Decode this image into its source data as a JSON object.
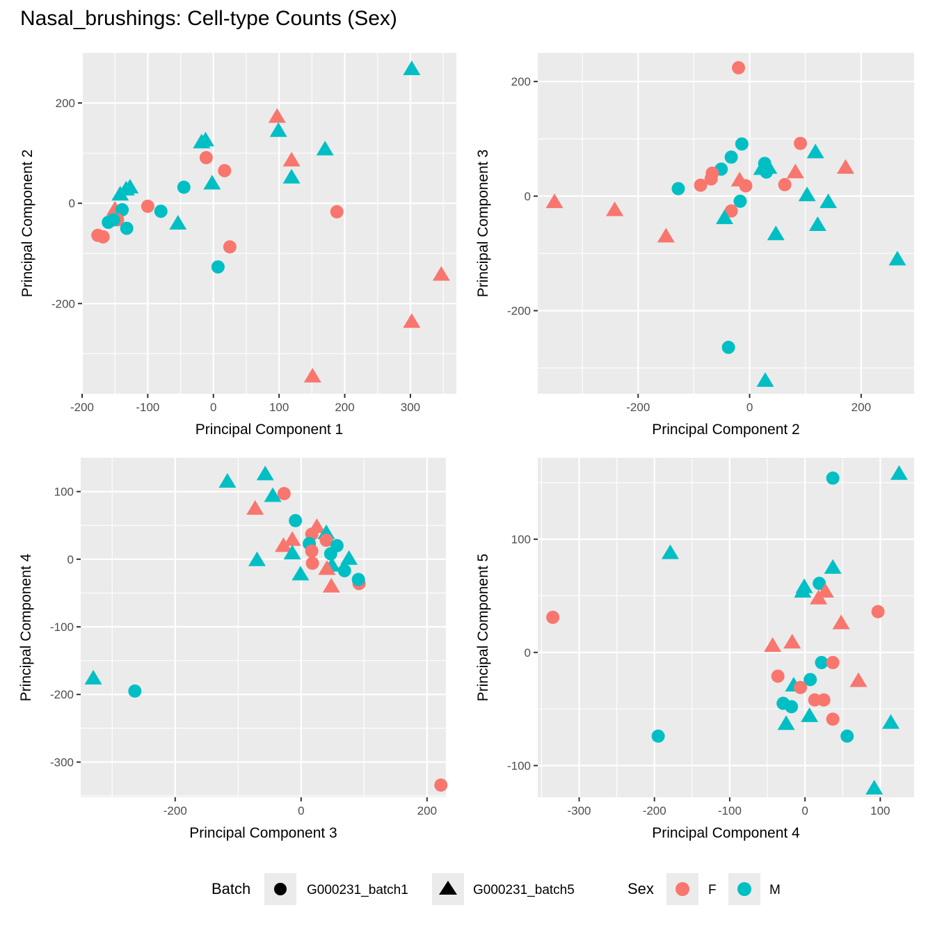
{
  "title": "Nasal_brushings: Cell-type Counts (Sex)",
  "colors": {
    "F": "#F8766D",
    "M": "#00BFC4",
    "panel_bg": "#EBEBEB",
    "grid": "#FFFFFF"
  },
  "legend": {
    "batch_title": "Batch",
    "batch_items": [
      {
        "label": "G000231_batch1",
        "shape": "circle"
      },
      {
        "label": "G000231_batch5",
        "shape": "triangle"
      }
    ],
    "sex_title": "Sex",
    "sex_items": [
      {
        "label": "F",
        "color": "#F8766D"
      },
      {
        "label": "M",
        "color": "#00BFC4"
      }
    ]
  },
  "chart_data": [
    {
      "type": "scatter",
      "title": "",
      "xlabel": "Principal Component 1",
      "ylabel": "Principal Component 2",
      "xlim": [
        -200,
        370
      ],
      "ylim": [
        -380,
        300
      ],
      "xticks": [
        -200,
        -100,
        0,
        100,
        200,
        300
      ],
      "xtick_labels": [
        "-200",
        "-100",
        "0",
        "100",
        "200",
        "300"
      ],
      "yticks": [
        -200,
        0,
        200
      ],
      "ytick_labels": [
        "-200",
        "0",
        "200"
      ],
      "minor_x": [
        -150,
        -50,
        50,
        150,
        250,
        350
      ],
      "minor_y": [
        -300,
        -100,
        100
      ],
      "grid": true,
      "points": [
        {
          "x": 302,
          "y": 268,
          "sex": "M",
          "batch": "batch5"
        },
        {
          "x": 97,
          "y": 173,
          "sex": "F",
          "batch": "batch5"
        },
        {
          "x": 99,
          "y": 145,
          "sex": "M",
          "batch": "batch5"
        },
        {
          "x": -18,
          "y": 122,
          "sex": "M",
          "batch": "batch5"
        },
        {
          "x": -12,
          "y": 126,
          "sex": "M",
          "batch": "batch5"
        },
        {
          "x": 170,
          "y": 108,
          "sex": "M",
          "batch": "batch5"
        },
        {
          "x": 119,
          "y": 86,
          "sex": "F",
          "batch": "batch5"
        },
        {
          "x": 119,
          "y": 52,
          "sex": "M",
          "batch": "batch5"
        },
        {
          "x": -11,
          "y": 91,
          "sex": "F",
          "batch": "batch1"
        },
        {
          "x": 17,
          "y": 65,
          "sex": "F",
          "batch": "batch1"
        },
        {
          "x": -2,
          "y": 40,
          "sex": "M",
          "batch": "batch5"
        },
        {
          "x": -45,
          "y": 32,
          "sex": "M",
          "batch": "batch1"
        },
        {
          "x": -127,
          "y": 32,
          "sex": "M",
          "batch": "batch5"
        },
        {
          "x": -133,
          "y": 28,
          "sex": "M",
          "batch": "batch5"
        },
        {
          "x": -142,
          "y": 18,
          "sex": "M",
          "batch": "batch5"
        },
        {
          "x": -150,
          "y": -12,
          "sex": "F",
          "batch": "batch5"
        },
        {
          "x": -100,
          "y": -6,
          "sex": "F",
          "batch": "batch1"
        },
        {
          "x": -139,
          "y": -13,
          "sex": "M",
          "batch": "batch1"
        },
        {
          "x": -80,
          "y": -16,
          "sex": "M",
          "batch": "batch1"
        },
        {
          "x": -146,
          "y": -33,
          "sex": "F",
          "batch": "batch1"
        },
        {
          "x": -152,
          "y": -33,
          "sex": "M",
          "batch": "batch1"
        },
        {
          "x": -160,
          "y": -38,
          "sex": "M",
          "batch": "batch1"
        },
        {
          "x": -132,
          "y": -50,
          "sex": "M",
          "batch": "batch1"
        },
        {
          "x": -54,
          "y": -40,
          "sex": "M",
          "batch": "batch5"
        },
        {
          "x": -176,
          "y": -64,
          "sex": "F",
          "batch": "batch1"
        },
        {
          "x": -168,
          "y": -67,
          "sex": "F",
          "batch": "batch1"
        },
        {
          "x": 188,
          "y": -17,
          "sex": "F",
          "batch": "batch1"
        },
        {
          "x": 25,
          "y": -87,
          "sex": "F",
          "batch": "batch1"
        },
        {
          "x": 7,
          "y": -127,
          "sex": "M",
          "batch": "batch1"
        },
        {
          "x": 347,
          "y": -142,
          "sex": "F",
          "batch": "batch5"
        },
        {
          "x": 302,
          "y": -236,
          "sex": "F",
          "batch": "batch5"
        },
        {
          "x": 151,
          "y": -345,
          "sex": "F",
          "batch": "batch5"
        }
      ]
    },
    {
      "type": "scatter",
      "title": "",
      "xlabel": "Principal Component 2",
      "ylabel": "Principal Component 3",
      "xlim": [
        -380,
        295
      ],
      "ylim": [
        -345,
        250
      ],
      "xticks": [
        -200,
        0,
        200
      ],
      "xtick_labels": [
        "-200",
        "0",
        "200"
      ],
      "yticks": [
        -200,
        0,
        200
      ],
      "ytick_labels": [
        "-200",
        "0",
        "200"
      ],
      "minor_x": [
        -300,
        -100,
        100
      ],
      "minor_y": [
        -300,
        -100,
        100
      ],
      "grid": true,
      "points": [
        {
          "x": -20,
          "y": 224,
          "sex": "F",
          "batch": "batch1"
        },
        {
          "x": -14,
          "y": 91,
          "sex": "M",
          "batch": "batch1"
        },
        {
          "x": 91,
          "y": 92,
          "sex": "F",
          "batch": "batch1"
        },
        {
          "x": 118,
          "y": 77,
          "sex": "M",
          "batch": "batch5"
        },
        {
          "x": -33,
          "y": 68,
          "sex": "M",
          "batch": "batch1"
        },
        {
          "x": 172,
          "y": 50,
          "sex": "F",
          "batch": "batch5"
        },
        {
          "x": -51,
          "y": 47,
          "sex": "M",
          "batch": "batch1"
        },
        {
          "x": 27,
          "y": 57,
          "sex": "M",
          "batch": "batch1"
        },
        {
          "x": 22,
          "y": 48,
          "sex": "M",
          "batch": "batch5"
        },
        {
          "x": 34,
          "y": 50,
          "sex": "M",
          "batch": "batch5"
        },
        {
          "x": 30,
          "y": 42,
          "sex": "M",
          "batch": "batch1"
        },
        {
          "x": 82,
          "y": 42,
          "sex": "F",
          "batch": "batch5"
        },
        {
          "x": -67,
          "y": 40,
          "sex": "F",
          "batch": "batch1"
        },
        {
          "x": -69,
          "y": 30,
          "sex": "F",
          "batch": "batch1"
        },
        {
          "x": -18,
          "y": 28,
          "sex": "F",
          "batch": "batch5"
        },
        {
          "x": -88,
          "y": 19,
          "sex": "F",
          "batch": "batch1"
        },
        {
          "x": -7,
          "y": 18,
          "sex": "F",
          "batch": "batch1"
        },
        {
          "x": 63,
          "y": 20,
          "sex": "F",
          "batch": "batch1"
        },
        {
          "x": -128,
          "y": 13,
          "sex": "M",
          "batch": "batch1"
        },
        {
          "x": 103,
          "y": 2,
          "sex": "M",
          "batch": "batch5"
        },
        {
          "x": 141,
          "y": -10,
          "sex": "M",
          "batch": "batch5"
        },
        {
          "x": -17,
          "y": -9,
          "sex": "M",
          "batch": "batch1"
        },
        {
          "x": -33,
          "y": -26,
          "sex": "F",
          "batch": "batch1"
        },
        {
          "x": -45,
          "y": -38,
          "sex": "M",
          "batch": "batch5"
        },
        {
          "x": 122,
          "y": -50,
          "sex": "M",
          "batch": "batch5"
        },
        {
          "x": 47,
          "y": -66,
          "sex": "M",
          "batch": "batch5"
        },
        {
          "x": -350,
          "y": -10,
          "sex": "F",
          "batch": "batch5"
        },
        {
          "x": -242,
          "y": -24,
          "sex": "F",
          "batch": "batch5"
        },
        {
          "x": -150,
          "y": -70,
          "sex": "F",
          "batch": "batch5"
        },
        {
          "x": 265,
          "y": -110,
          "sex": "M",
          "batch": "batch5"
        },
        {
          "x": -38,
          "y": -264,
          "sex": "M",
          "batch": "batch1"
        },
        {
          "x": 28,
          "y": -322,
          "sex": "M",
          "batch": "batch5"
        }
      ]
    },
    {
      "type": "scatter",
      "title": "",
      "xlabel": "Principal Component 3",
      "ylabel": "Principal Component 4",
      "xlim": [
        -350,
        230
      ],
      "ylim": [
        -352,
        150
      ],
      "xticks": [
        -200,
        0,
        200
      ],
      "xtick_labels": [
        "-200",
        "0",
        "200"
      ],
      "yticks": [
        -300,
        -200,
        -100,
        0,
        100
      ],
      "ytick_labels": [
        "-300",
        "-200",
        "-100",
        "0",
        "100"
      ],
      "minor_x": [
        -300,
        -100,
        100
      ],
      "minor_y": [
        -350,
        -250,
        -150,
        -50,
        50
      ],
      "grid": true,
      "points": [
        {
          "x": -57,
          "y": 126,
          "sex": "M",
          "batch": "batch5"
        },
        {
          "x": -117,
          "y": 115,
          "sex": "M",
          "batch": "batch5"
        },
        {
          "x": -27,
          "y": 97,
          "sex": "F",
          "batch": "batch1"
        },
        {
          "x": -45,
          "y": 94,
          "sex": "M",
          "batch": "batch5"
        },
        {
          "x": -73,
          "y": 75,
          "sex": "F",
          "batch": "batch5"
        },
        {
          "x": -9,
          "y": 57,
          "sex": "M",
          "batch": "batch1"
        },
        {
          "x": 25,
          "y": 48,
          "sex": "F",
          "batch": "batch5"
        },
        {
          "x": 17,
          "y": 37,
          "sex": "F",
          "batch": "batch1"
        },
        {
          "x": 40,
          "y": 39,
          "sex": "M",
          "batch": "batch5"
        },
        {
          "x": 40,
          "y": 28,
          "sex": "F",
          "batch": "batch1"
        },
        {
          "x": -14,
          "y": 29,
          "sex": "F",
          "batch": "batch5"
        },
        {
          "x": -28,
          "y": 20,
          "sex": "F",
          "batch": "batch5"
        },
        {
          "x": 13,
          "y": 23,
          "sex": "M",
          "batch": "batch1"
        },
        {
          "x": 57,
          "y": 20,
          "sex": "M",
          "batch": "batch1"
        },
        {
          "x": 17,
          "y": 12,
          "sex": "F",
          "batch": "batch1"
        },
        {
          "x": -14,
          "y": 9,
          "sex": "M",
          "batch": "batch5"
        },
        {
          "x": 47,
          "y": 8,
          "sex": "M",
          "batch": "batch1"
        },
        {
          "x": -70,
          "y": -1,
          "sex": "M",
          "batch": "batch5"
        },
        {
          "x": 76,
          "y": 1,
          "sex": "M",
          "batch": "batch5"
        },
        {
          "x": 18,
          "y": -6,
          "sex": "F",
          "batch": "batch1"
        },
        {
          "x": 49,
          "y": -9,
          "sex": "M",
          "batch": "batch5"
        },
        {
          "x": 41,
          "y": -14,
          "sex": "F",
          "batch": "batch5"
        },
        {
          "x": 69,
          "y": -17,
          "sex": "M",
          "batch": "batch1"
        },
        {
          "x": -1,
          "y": -22,
          "sex": "M",
          "batch": "batch5"
        },
        {
          "x": 92,
          "y": -36,
          "sex": "F",
          "batch": "batch1"
        },
        {
          "x": 91,
          "y": -30,
          "sex": "M",
          "batch": "batch1"
        },
        {
          "x": 48,
          "y": -40,
          "sex": "F",
          "batch": "batch5"
        },
        {
          "x": -330,
          "y": -176,
          "sex": "M",
          "batch": "batch5"
        },
        {
          "x": -264,
          "y": -195,
          "sex": "M",
          "batch": "batch1"
        },
        {
          "x": 222,
          "y": -334,
          "sex": "F",
          "batch": "batch1"
        }
      ]
    },
    {
      "type": "scatter",
      "title": "",
      "xlabel": "Principal Component 4",
      "ylabel": "Principal Component 5",
      "xlim": [
        -355,
        145
      ],
      "ylim": [
        -128,
        172
      ],
      "xticks": [
        -300,
        -200,
        -100,
        0,
        100
      ],
      "xtick_labels": [
        "-300",
        "-200",
        "-100",
        "0",
        "100"
      ],
      "yticks": [
        -100,
        0,
        100
      ],
      "ytick_labels": [
        "-100",
        "0",
        "100"
      ],
      "minor_x": [
        -350,
        -250,
        -150,
        -50,
        50
      ],
      "minor_y": [
        -50,
        50,
        150
      ],
      "grid": true,
      "points": [
        {
          "x": 125,
          "y": 158,
          "sex": "M",
          "batch": "batch5"
        },
        {
          "x": 37,
          "y": 154,
          "sex": "M",
          "batch": "batch1"
        },
        {
          "x": -179,
          "y": 88,
          "sex": "M",
          "batch": "batch5"
        },
        {
          "x": 37,
          "y": 75,
          "sex": "M",
          "batch": "batch5"
        },
        {
          "x": 19,
          "y": 61,
          "sex": "M",
          "batch": "batch1"
        },
        {
          "x": -1,
          "y": 58,
          "sex": "M",
          "batch": "batch5"
        },
        {
          "x": -3,
          "y": 54,
          "sex": "M",
          "batch": "batch5"
        },
        {
          "x": 27,
          "y": 54,
          "sex": "F",
          "batch": "batch5"
        },
        {
          "x": 18,
          "y": 48,
          "sex": "F",
          "batch": "batch5"
        },
        {
          "x": 97,
          "y": 36,
          "sex": "F",
          "batch": "batch1"
        },
        {
          "x": -335,
          "y": 31,
          "sex": "F",
          "batch": "batch1"
        },
        {
          "x": 48,
          "y": 26,
          "sex": "F",
          "batch": "batch5"
        },
        {
          "x": -17,
          "y": 9,
          "sex": "F",
          "batch": "batch5"
        },
        {
          "x": -43,
          "y": 6,
          "sex": "F",
          "batch": "batch5"
        },
        {
          "x": 22,
          "y": -9,
          "sex": "M",
          "batch": "batch1"
        },
        {
          "x": 37,
          "y": -9,
          "sex": "F",
          "batch": "batch1"
        },
        {
          "x": -36,
          "y": -21,
          "sex": "F",
          "batch": "batch1"
        },
        {
          "x": 7,
          "y": -24,
          "sex": "M",
          "batch": "batch1"
        },
        {
          "x": 71,
          "y": -25,
          "sex": "F",
          "batch": "batch5"
        },
        {
          "x": -15,
          "y": -29,
          "sex": "M",
          "batch": "batch5"
        },
        {
          "x": -6,
          "y": -31,
          "sex": "F",
          "batch": "batch1"
        },
        {
          "x": 13,
          "y": -42,
          "sex": "F",
          "batch": "batch1"
        },
        {
          "x": 25,
          "y": -42,
          "sex": "F",
          "batch": "batch1"
        },
        {
          "x": -29,
          "y": -45,
          "sex": "M",
          "batch": "batch1"
        },
        {
          "x": -18,
          "y": -48,
          "sex": "M",
          "batch": "batch1"
        },
        {
          "x": 6,
          "y": -56,
          "sex": "M",
          "batch": "batch5"
        },
        {
          "x": 37,
          "y": -59,
          "sex": "F",
          "batch": "batch1"
        },
        {
          "x": -25,
          "y": -63,
          "sex": "M",
          "batch": "batch5"
        },
        {
          "x": 114,
          "y": -62,
          "sex": "M",
          "batch": "batch5"
        },
        {
          "x": 56,
          "y": -74,
          "sex": "M",
          "batch": "batch1"
        },
        {
          "x": -195,
          "y": -74,
          "sex": "M",
          "batch": "batch1"
        },
        {
          "x": 92,
          "y": -120,
          "sex": "M",
          "batch": "batch5"
        }
      ]
    }
  ]
}
